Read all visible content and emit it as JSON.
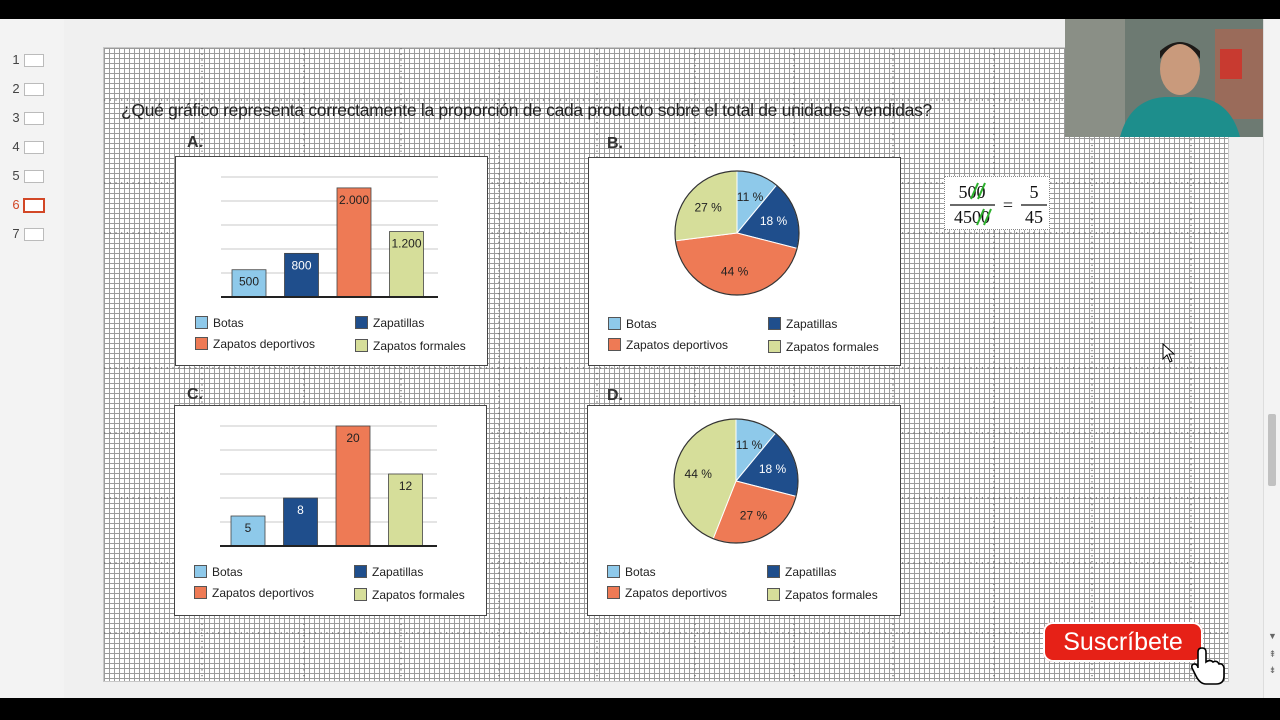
{
  "thumbnails": [
    {
      "num": "1"
    },
    {
      "num": "2"
    },
    {
      "num": "3"
    },
    {
      "num": "4"
    },
    {
      "num": "5"
    },
    {
      "num": "6",
      "active": true
    },
    {
      "num": "7"
    }
  ],
  "slide": {
    "question": "¿Qué gráfico representa correctamente la proporción de cada producto sobre el total de unidades vendidas?",
    "panels": {
      "a": {
        "label": "A."
      },
      "b": {
        "label": "B."
      },
      "c": {
        "label": "C."
      },
      "d": {
        "label": "D."
      }
    },
    "legend": {
      "botas": "Botas",
      "zapatillas": "Zapatillas",
      "deportivos": "Zapatos deportivos",
      "formales": "Zapatos formales"
    },
    "fraction": {
      "left_num": "500",
      "left_den": "4500",
      "equals": "=",
      "right_num": "5",
      "right_den": "45"
    }
  },
  "colors": {
    "botas": "#8ec9ea",
    "zapatillas": "#1f4e8c",
    "deportivos": "#ee7a55",
    "formales": "#d6de9a"
  },
  "subscribe": {
    "label": "Suscríbete"
  },
  "chart_data": [
    {
      "panel": "A",
      "type": "bar",
      "categories": [
        "Botas",
        "Zapatillas",
        "Zapatos deportivos",
        "Zapatos formales"
      ],
      "values": [
        500,
        800,
        2000,
        1200
      ],
      "value_labels": [
        "500",
        "800",
        "2.000",
        "1.200"
      ],
      "ylim": [
        0,
        2200
      ]
    },
    {
      "panel": "B",
      "type": "pie",
      "categories": [
        "Botas",
        "Zapatillas",
        "Zapatos deportivos",
        "Zapatos formales"
      ],
      "values": [
        11,
        18,
        44,
        27
      ],
      "value_labels": [
        "11 %",
        "18 %",
        "44 %",
        "27 %"
      ]
    },
    {
      "panel": "C",
      "type": "bar",
      "categories": [
        "Botas",
        "Zapatillas",
        "Zapatos deportivos",
        "Zapatos formales"
      ],
      "values": [
        5,
        8,
        20,
        12
      ],
      "value_labels": [
        "5",
        "8",
        "20",
        "12"
      ],
      "ylim": [
        0,
        20
      ]
    },
    {
      "panel": "D",
      "type": "pie",
      "categories": [
        "Botas",
        "Zapatillas",
        "Zapatos deportivos",
        "Zapatos formales"
      ],
      "values": [
        11,
        18,
        27,
        44
      ],
      "value_labels": [
        "11 %",
        "18 %",
        "27 %",
        "44 %"
      ]
    }
  ]
}
